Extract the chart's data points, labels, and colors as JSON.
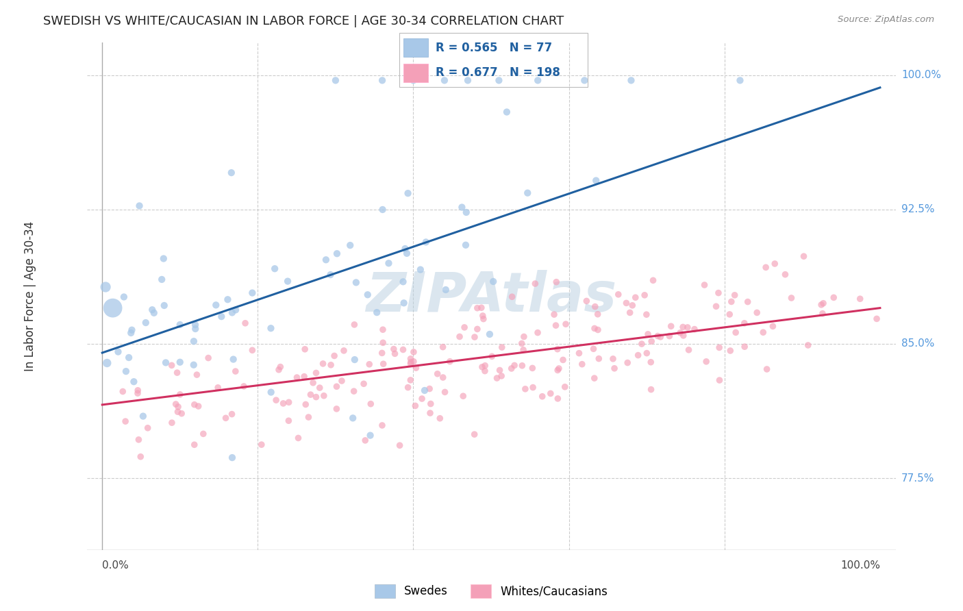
{
  "title": "SWEDISH VS WHITE/CAUCASIAN IN LABOR FORCE | AGE 30-34 CORRELATION CHART",
  "source": "Source: ZipAtlas.com",
  "ylabel": "In Labor Force | Age 30-34",
  "blue_R": 0.565,
  "blue_N": 77,
  "pink_R": 0.677,
  "pink_N": 198,
  "blue_color": "#a8c8e8",
  "pink_color": "#f4a0b8",
  "blue_line_color": "#2060a0",
  "pink_line_color": "#d03060",
  "legend_text_color": "#2060a0",
  "legend_label_blue": "Swedes",
  "legend_label_pink": "Whites/Caucasians",
  "watermark": "ZIPAtlas",
  "blue_trend_x0": 0.0,
  "blue_trend_y0": 0.845,
  "blue_trend_x1": 1.0,
  "blue_trend_y1": 0.993,
  "pink_trend_x0": 0.0,
  "pink_trend_y0": 0.816,
  "pink_trend_x1": 1.0,
  "pink_trend_y1": 0.87,
  "ytick_positions": [
    0.775,
    0.85,
    0.925,
    1.0
  ],
  "ytick_labels": [
    "77.5%",
    "85.0%",
    "92.5%",
    "100.0%"
  ],
  "right_label_color": "#5599dd",
  "xmin": 0.0,
  "xmax": 1.0,
  "ymin": 0.735,
  "ymax": 1.018,
  "grid_color": "#cccccc",
  "axis_color": "#aaaaaa",
  "title_fontsize": 13,
  "label_fontsize": 12,
  "tick_label_fontsize": 11
}
